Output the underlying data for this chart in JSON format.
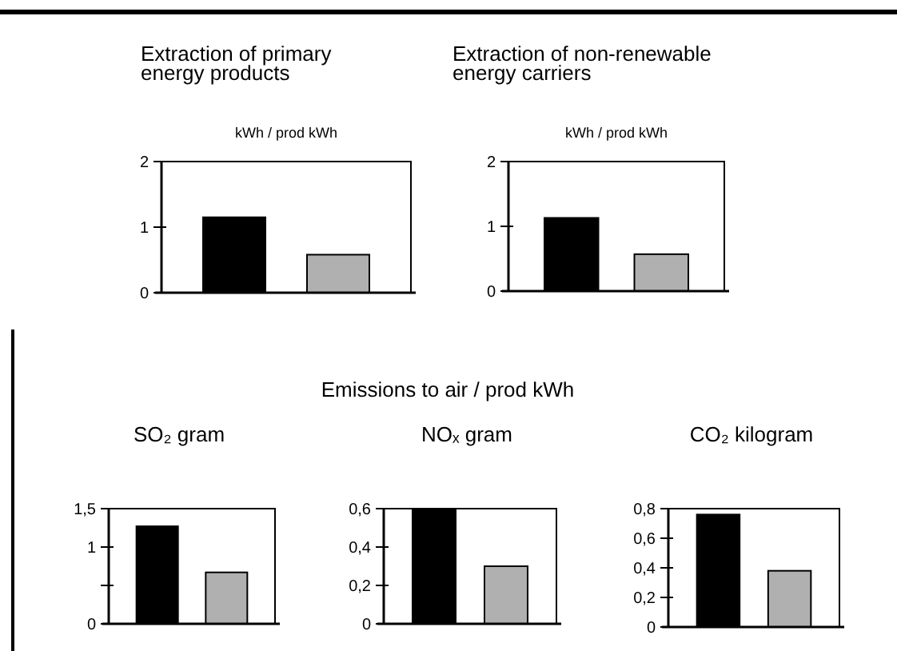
{
  "chart_data": [
    {
      "type": "bar",
      "title": "Extraction of primary energy products",
      "ylabel": "kWh / prod kWh",
      "categories": [
        null,
        null
      ],
      "values": [
        1.15,
        0.58
      ],
      "colors": [
        "#000000",
        "#b0b0b0"
      ],
      "ylim": [
        0,
        2
      ],
      "yticks": [
        0,
        1,
        2
      ],
      "grid": false
    },
    {
      "type": "bar",
      "title": "Extraction of non-renewable energy carriers",
      "ylabel": "kWh / prod kWh",
      "categories": [
        null,
        null
      ],
      "values": [
        1.13,
        0.57
      ],
      "colors": [
        "#000000",
        "#b0b0b0"
      ],
      "ylim": [
        0,
        2
      ],
      "yticks": [
        0,
        1,
        2
      ],
      "grid": false
    },
    {
      "type": "other",
      "title": "Emissions to air / prod kWh"
    },
    {
      "type": "bar",
      "title": "SO₂ gram",
      "categories": [
        null,
        null
      ],
      "values": [
        1.27,
        0.67
      ],
      "colors": [
        "#000000",
        "#b0b0b0"
      ],
      "ylim": [
        0,
        1.5
      ],
      "yticks": [
        0,
        {
          "value": 0.5,
          "label": null
        },
        1,
        {
          "value": 1.5,
          "label": "1,5"
        }
      ],
      "grid": false
    },
    {
      "type": "bar",
      "title": "NOₓ gram",
      "categories": [
        null,
        null
      ],
      "values": [
        0.6,
        0.3
      ],
      "colors": [
        "#000000",
        "#b0b0b0"
      ],
      "ylim": [
        0,
        0.6
      ],
      "yticks": [
        0,
        {
          "value": 0.2,
          "label": "0,2"
        },
        {
          "value": 0.4,
          "label": "0,4"
        },
        {
          "value": 0.6,
          "label": "0,6"
        }
      ],
      "grid": false
    },
    {
      "type": "bar",
      "title": "CO₂ kilogram",
      "categories": [
        null,
        null
      ],
      "values": [
        0.76,
        0.38
      ],
      "colors": [
        "#000000",
        "#b0b0b0"
      ],
      "ylim": [
        0,
        0.8
      ],
      "yticks": [
        0,
        {
          "value": 0.2,
          "label": "0,2"
        },
        {
          "value": 0.4,
          "label": "0,4"
        },
        {
          "value": 0.6,
          "label": "0,6"
        },
        {
          "value": 0.8,
          "label": "0,8"
        }
      ],
      "grid": false
    }
  ]
}
